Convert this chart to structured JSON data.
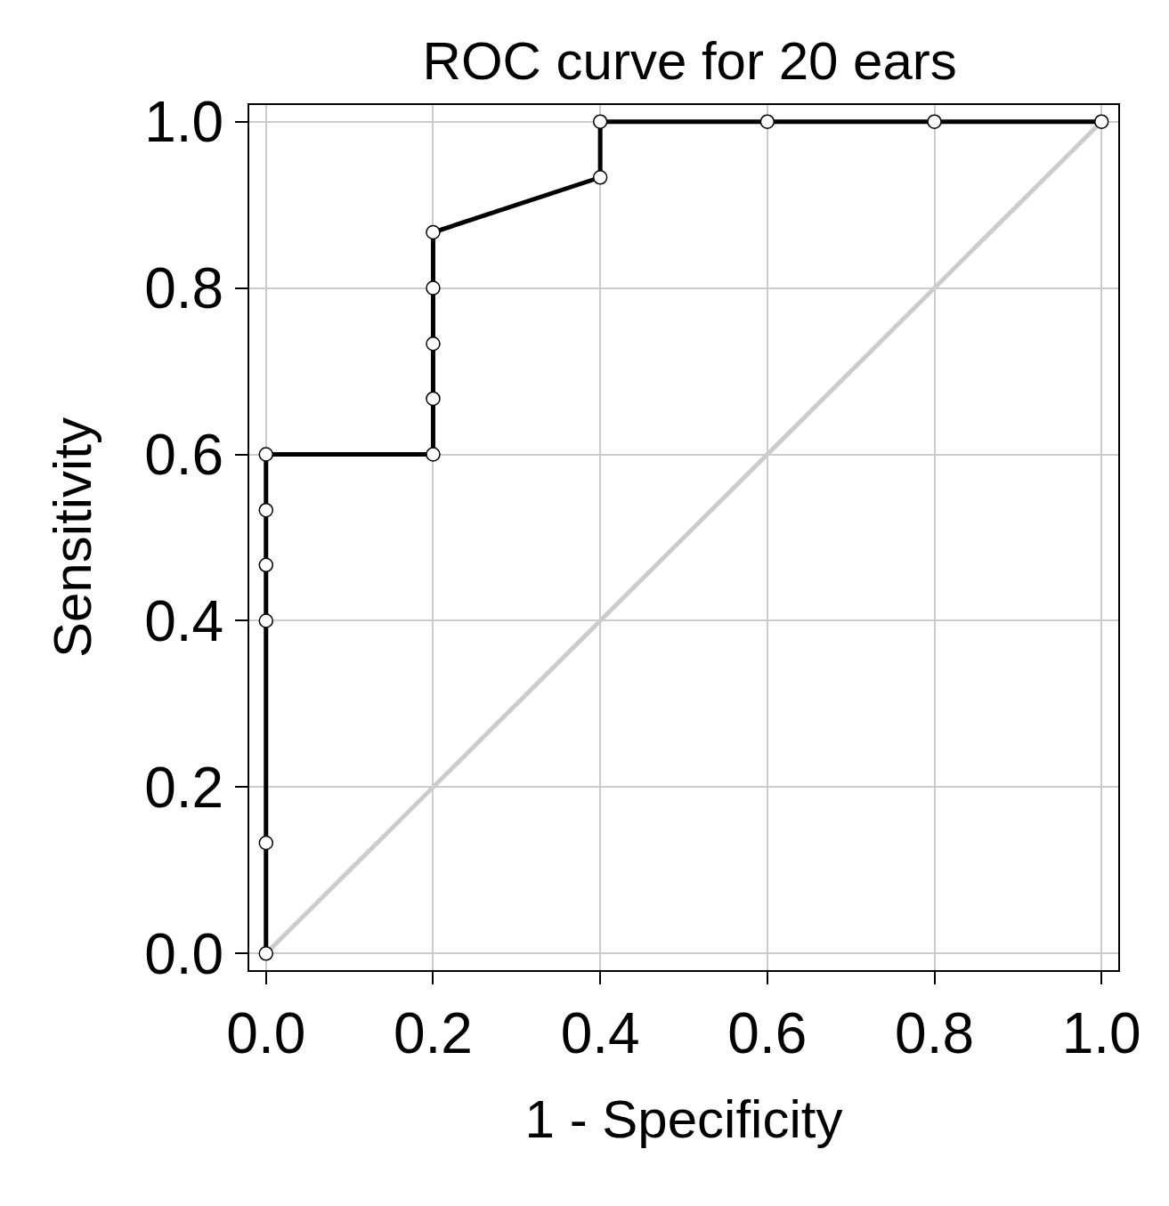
{
  "chart_data": {
    "type": "line",
    "title": "ROC curve for 20 ears",
    "xlabel": "1 - Specificity",
    "ylabel": "Sensitivity",
    "xlim": [
      -0.02,
      1.02
    ],
    "ylim": [
      -0.02,
      1.02
    ],
    "xticks": [
      {
        "value": 0,
        "label": "0.0"
      },
      0.2,
      0.4,
      0.6,
      0.8,
      {
        "value": 1,
        "label": "1.0"
      }
    ],
    "yticks": [
      {
        "value": 0,
        "label": "0.0"
      },
      0.2,
      0.4,
      0.6,
      0.8,
      {
        "value": 1,
        "label": "1.0"
      }
    ],
    "grid": true,
    "series": [
      {
        "color": "#cccccc",
        "marker": "none",
        "x": [
          0,
          1
        ],
        "values": [
          0,
          1
        ]
      },
      {
        "color": "#000000",
        "marker": "circle",
        "x": [
          0,
          0,
          0,
          0,
          0,
          0,
          0.2,
          0.2,
          0.2,
          0.2,
          0.2,
          0.4,
          0.4,
          0.6,
          0.8,
          1
        ],
        "values": [
          0,
          0.133,
          0.4,
          0.467,
          0.533,
          0.6,
          0.6,
          0.667,
          0.733,
          0.8,
          0.867,
          0.933,
          1,
          1,
          1,
          1
        ]
      }
    ]
  }
}
